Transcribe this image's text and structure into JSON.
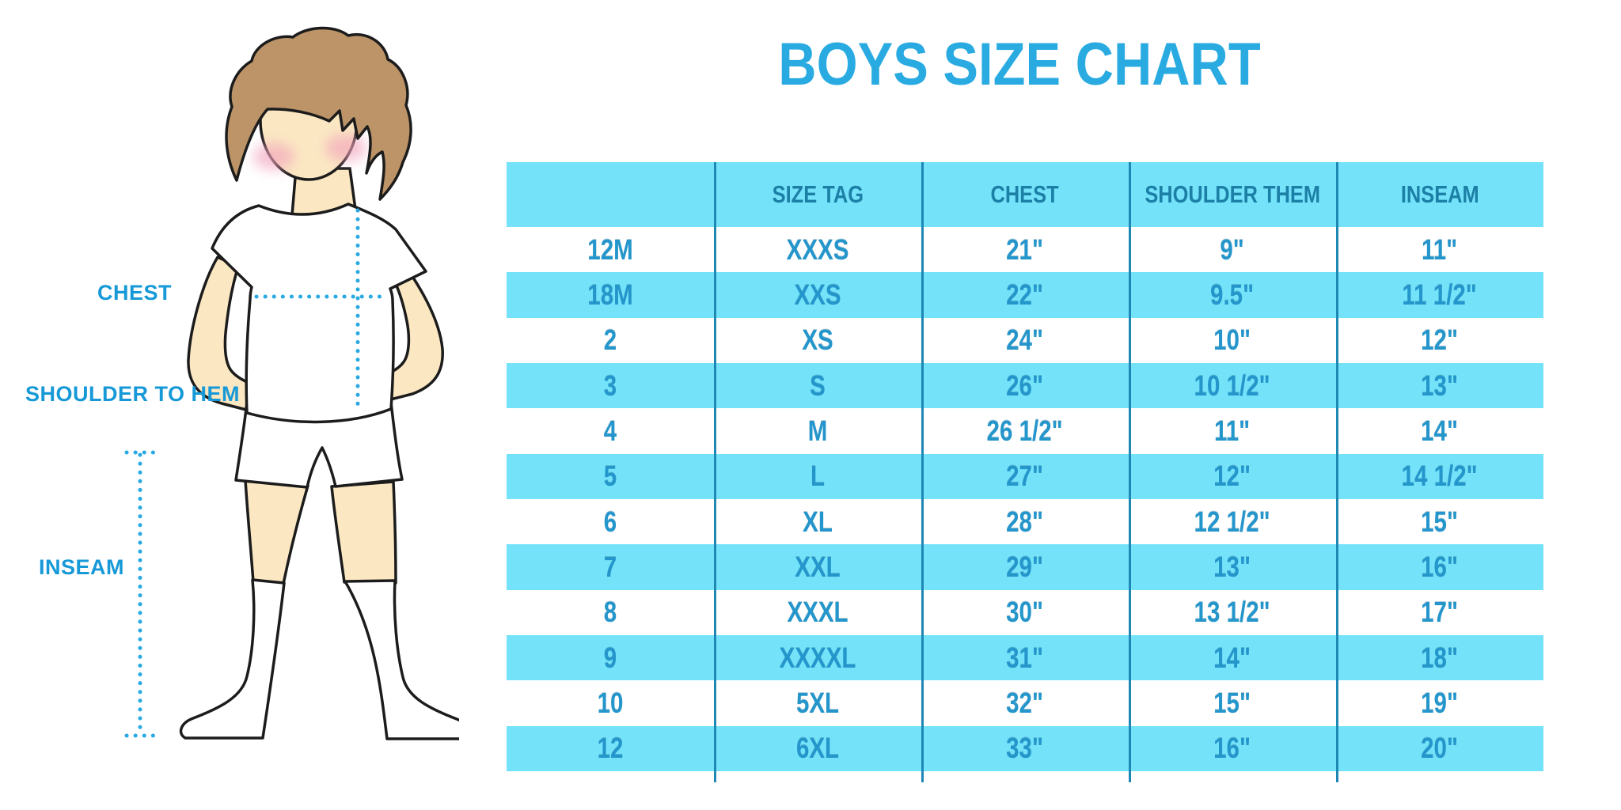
{
  "title": "BOYS SIZE CHART",
  "colors": {
    "accent": "#29ABE2",
    "stripe": "#74E3FA",
    "divider": "#1E87B4",
    "header_text": "#1C7FA6",
    "body_text": "#2496CB",
    "label": "#1799D8",
    "dotted": "#29A9E2",
    "skin": "#FBE8C3",
    "hair": "#BC9468",
    "blush": "#F2A3BC",
    "outline": "#1C1C1C"
  },
  "figure": {
    "labels": {
      "chest": "CHEST",
      "shoulder_to_hem": "SHOULDER TO HEM",
      "inseam": "INSEAM"
    }
  },
  "table": {
    "headers": [
      "",
      "SIZE TAG",
      "CHEST",
      "SHOULDER THEM",
      "INSEAM"
    ],
    "rows": [
      [
        "12M",
        "XXXS",
        "21\"",
        "9\"",
        "11\""
      ],
      [
        "18M",
        "XXS",
        "22\"",
        "9.5\"",
        "11 1/2\""
      ],
      [
        "2",
        "XS",
        "24\"",
        "10\"",
        "12\""
      ],
      [
        "3",
        "S",
        "26\"",
        "10 1/2\"",
        "13\""
      ],
      [
        "4",
        "M",
        "26 1/2\"",
        "11\"",
        "14\""
      ],
      [
        "5",
        "L",
        "27\"",
        "12\"",
        "14 1/2\""
      ],
      [
        "6",
        "XL",
        "28\"",
        "12 1/2\"",
        "15\""
      ],
      [
        "7",
        "XXL",
        "29\"",
        "13\"",
        "16\""
      ],
      [
        "8",
        "XXXL",
        "30\"",
        "13 1/2\"",
        "17\""
      ],
      [
        "9",
        "XXXXL",
        "31\"",
        "14\"",
        "18\""
      ],
      [
        "10",
        "5XL",
        "32\"",
        "15\"",
        "19\""
      ],
      [
        "12",
        "6XL",
        "33\"",
        "16\"",
        "20\""
      ]
    ]
  }
}
